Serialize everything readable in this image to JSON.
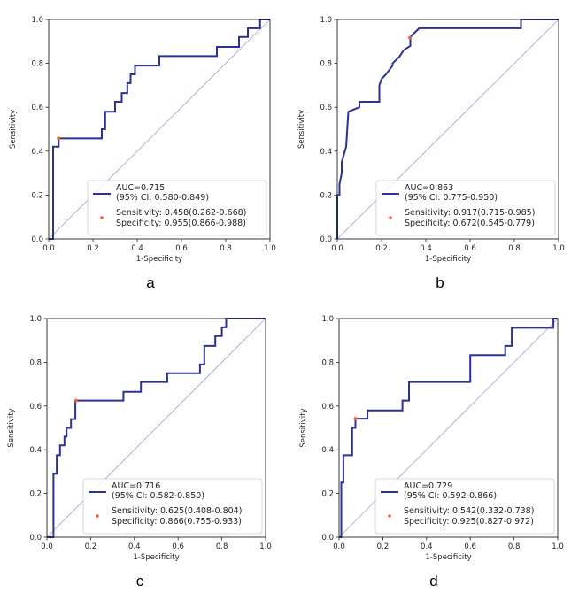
{
  "chart_data": [
    {
      "type": "line",
      "panel_label": "a",
      "xlabel": "1-Specificity",
      "ylabel": "Sensitivity",
      "xlim": [
        0,
        1
      ],
      "ylim": [
        0,
        1
      ],
      "xticks": [
        "0.0",
        "0.2",
        "0.4",
        "0.6",
        "0.8",
        "1.0"
      ],
      "yticks": [
        "0.0",
        "0.2",
        "0.4",
        "0.6",
        "0.8",
        "1.0"
      ],
      "legend": {
        "line_lines": [
          "AUC=0.715",
          "(95% CI: 0.580-0.849)"
        ],
        "point_lines": [
          "Sensitivity: 0.458(0.262-0.668)",
          "Specificity: 0.955(0.866-0.988)"
        ],
        "placement": "lower-right"
      },
      "cutoff_point": {
        "x": 0.045,
        "y": 0.458
      },
      "roc": {
        "x": [
          0,
          0.02,
          0.02,
          0.045,
          0.045,
          0.24,
          0.24,
          0.255,
          0.255,
          0.3,
          0.3,
          0.33,
          0.33,
          0.355,
          0.355,
          0.37,
          0.37,
          0.39,
          0.39,
          0.42,
          0.42,
          0.5,
          0.5,
          0.76,
          0.76,
          0.86,
          0.86,
          0.9,
          0.9,
          0.955,
          0.955,
          1.0
        ],
        "y": [
          0,
          0,
          0.42,
          0.42,
          0.458,
          0.458,
          0.5,
          0.5,
          0.58,
          0.58,
          0.625,
          0.625,
          0.665,
          0.665,
          0.71,
          0.71,
          0.75,
          0.75,
          0.79,
          0.79,
          0.79,
          0.79,
          0.833,
          0.833,
          0.875,
          0.875,
          0.92,
          0.92,
          0.96,
          0.96,
          1.0,
          1.0
        ]
      },
      "diagonal": true
    },
    {
      "type": "line",
      "panel_label": "b",
      "xlabel": "1-Specificity",
      "ylabel": "Sensitivity",
      "xlim": [
        0,
        1
      ],
      "ylim": [
        0,
        1
      ],
      "xticks": [
        "0.0",
        "0.2",
        "0.4",
        "0.6",
        "0.8",
        "1.0"
      ],
      "yticks": [
        "0.0",
        "0.2",
        "0.4",
        "0.6",
        "0.8",
        "1.0"
      ],
      "legend": {
        "line_lines": [
          "AUC=0.863",
          "(95% CI: 0.775-0.950)"
        ],
        "point_lines": [
          "Sensitivity: 0.917(0.715-0.985)",
          "Specificity: 0.672(0.545-0.779)"
        ],
        "placement": "lower-right"
      },
      "cutoff_point": {
        "x": 0.328,
        "y": 0.917
      },
      "roc": {
        "x": [
          0,
          0.0,
          0.01,
          0.01,
          0.02,
          0.02,
          0.04,
          0.05,
          0.05,
          0.1,
          0.1,
          0.19,
          0.19,
          0.2,
          0.22,
          0.25,
          0.25,
          0.28,
          0.3,
          0.33,
          0.33,
          0.37,
          0.37,
          0.83,
          0.83,
          1.0
        ],
        "y": [
          0,
          0.2,
          0.2,
          0.25,
          0.3,
          0.35,
          0.42,
          0.58,
          0.58,
          0.6,
          0.625,
          0.625,
          0.7,
          0.73,
          0.75,
          0.79,
          0.8,
          0.83,
          0.86,
          0.88,
          0.92,
          0.96,
          0.96,
          0.96,
          1.0,
          1.0
        ]
      },
      "diagonal": true
    },
    {
      "type": "line",
      "panel_label": "c",
      "xlabel": "1-Specificity",
      "ylabel": "Sensitivity",
      "xlim": [
        0,
        1
      ],
      "ylim": [
        0,
        1
      ],
      "xticks": [
        "0.0",
        "0.2",
        "0.4",
        "0.6",
        "0.8",
        "1.0"
      ],
      "yticks": [
        "0.0",
        "0.2",
        "0.4",
        "0.6",
        "0.8",
        "1.0"
      ],
      "legend": {
        "line_lines": [
          "AUC=0.716",
          "(95% CI: 0.582-0.850)"
        ],
        "point_lines": [
          "Sensitivity: 0.625(0.408-0.804)",
          "Specificity: 0.866(0.755-0.933)"
        ],
        "placement": "lower-right"
      },
      "cutoff_point": {
        "x": 0.134,
        "y": 0.625
      },
      "roc": {
        "x": [
          0,
          0.03,
          0.03,
          0.045,
          0.045,
          0.06,
          0.06,
          0.08,
          0.08,
          0.09,
          0.09,
          0.11,
          0.11,
          0.13,
          0.13,
          0.35,
          0.35,
          0.43,
          0.43,
          0.55,
          0.55,
          0.7,
          0.7,
          0.72,
          0.72,
          0.77,
          0.77,
          0.8,
          0.8,
          0.82,
          0.82,
          1.0
        ],
        "y": [
          0,
          0,
          0.29,
          0.29,
          0.375,
          0.375,
          0.42,
          0.42,
          0.46,
          0.46,
          0.5,
          0.5,
          0.54,
          0.54,
          0.625,
          0.625,
          0.665,
          0.665,
          0.71,
          0.71,
          0.75,
          0.75,
          0.79,
          0.79,
          0.875,
          0.875,
          0.92,
          0.92,
          0.96,
          0.96,
          1.0,
          1.0
        ]
      },
      "diagonal": true
    },
    {
      "type": "line",
      "panel_label": "d",
      "xlabel": "1-Specificity",
      "ylabel": "Sensitivity",
      "xlim": [
        0,
        1
      ],
      "ylim": [
        0,
        1
      ],
      "xticks": [
        "0.0",
        "0.2",
        "0.4",
        "0.6",
        "0.8",
        "1.0"
      ],
      "yticks": [
        "0.0",
        "0.2",
        "0.4",
        "0.6",
        "0.8",
        "1.0"
      ],
      "legend": {
        "line_lines": [
          "AUC=0.729",
          "(95% CI: 0.592-0.866)"
        ],
        "point_lines": [
          "Sensitivity: 0.542(0.332-0.738)",
          "Specificity: 0.925(0.827-0.972)"
        ],
        "placement": "lower-right"
      },
      "cutoff_point": {
        "x": 0.075,
        "y": 0.542
      },
      "roc": {
        "x": [
          0,
          0.0,
          0.01,
          0.01,
          0.02,
          0.02,
          0.06,
          0.06,
          0.075,
          0.075,
          0.13,
          0.13,
          0.29,
          0.29,
          0.32,
          0.32,
          0.6,
          0.6,
          0.76,
          0.76,
          0.79,
          0.79,
          0.98,
          0.98,
          1.0
        ],
        "y": [
          0,
          0.0,
          0.0,
          0.25,
          0.25,
          0.375,
          0.375,
          0.5,
          0.5,
          0.542,
          0.542,
          0.58,
          0.58,
          0.625,
          0.625,
          0.71,
          0.71,
          0.833,
          0.833,
          0.875,
          0.875,
          0.958,
          0.958,
          1.0,
          1.0
        ]
      },
      "diagonal": true
    }
  ],
  "colors": {
    "roc_line": "#2b3296",
    "diagonal": "#9aa0d8",
    "cutoff_point": "#e8623a",
    "axes": "#222222"
  }
}
